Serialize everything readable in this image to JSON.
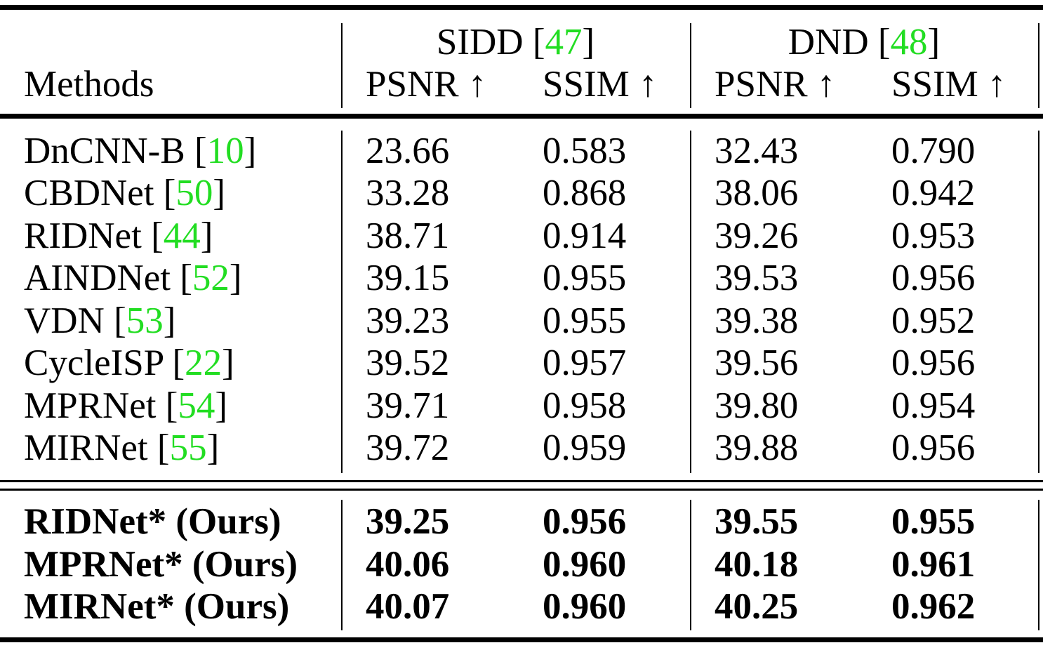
{
  "table": {
    "header": {
      "methods_label": "Methods",
      "groups": [
        {
          "name": "SIDD",
          "cite": "47",
          "metrics": [
            "PSNR ↑",
            "SSIM ↑"
          ]
        },
        {
          "name": "DND",
          "cite": "48",
          "metrics": [
            "PSNR ↑",
            "SSIM ↑"
          ]
        }
      ]
    },
    "baseline_rows": [
      {
        "method": "DnCNN-B",
        "cite": "10",
        "values": [
          "23.66",
          "0.583",
          "32.43",
          "0.790"
        ]
      },
      {
        "method": "CBDNet",
        "cite": "50",
        "values": [
          "33.28",
          "0.868",
          "38.06",
          "0.942"
        ]
      },
      {
        "method": "RIDNet",
        "cite": "44",
        "values": [
          "38.71",
          "0.914",
          "39.26",
          "0.953"
        ]
      },
      {
        "method": "AINDNet",
        "cite": "52",
        "values": [
          "39.15",
          "0.955",
          "39.53",
          "0.956"
        ]
      },
      {
        "method": "VDN",
        "cite": "53",
        "values": [
          "39.23",
          "0.955",
          "39.38",
          "0.952"
        ]
      },
      {
        "method": "CycleISP",
        "cite": "22",
        "values": [
          "39.52",
          "0.957",
          "39.56",
          "0.956"
        ]
      },
      {
        "method": "MPRNet",
        "cite": "54",
        "values": [
          "39.71",
          "0.958",
          "39.80",
          "0.954"
        ]
      },
      {
        "method": "MIRNet",
        "cite": "55",
        "values": [
          "39.72",
          "0.959",
          "39.88",
          "0.956"
        ]
      }
    ],
    "ours_rows": [
      {
        "method": "RIDNet* (Ours)",
        "values": [
          "39.25",
          "0.956",
          "39.55",
          "0.955"
        ]
      },
      {
        "method": "MPRNet* (Ours)",
        "values": [
          "40.06",
          "0.960",
          "40.18",
          "0.961"
        ]
      },
      {
        "method": "MIRNet* (Ours)",
        "values": [
          "40.07",
          "0.960",
          "40.25",
          "0.962"
        ]
      }
    ],
    "colors": {
      "citation": "#22dd22",
      "text": "#000000"
    }
  }
}
